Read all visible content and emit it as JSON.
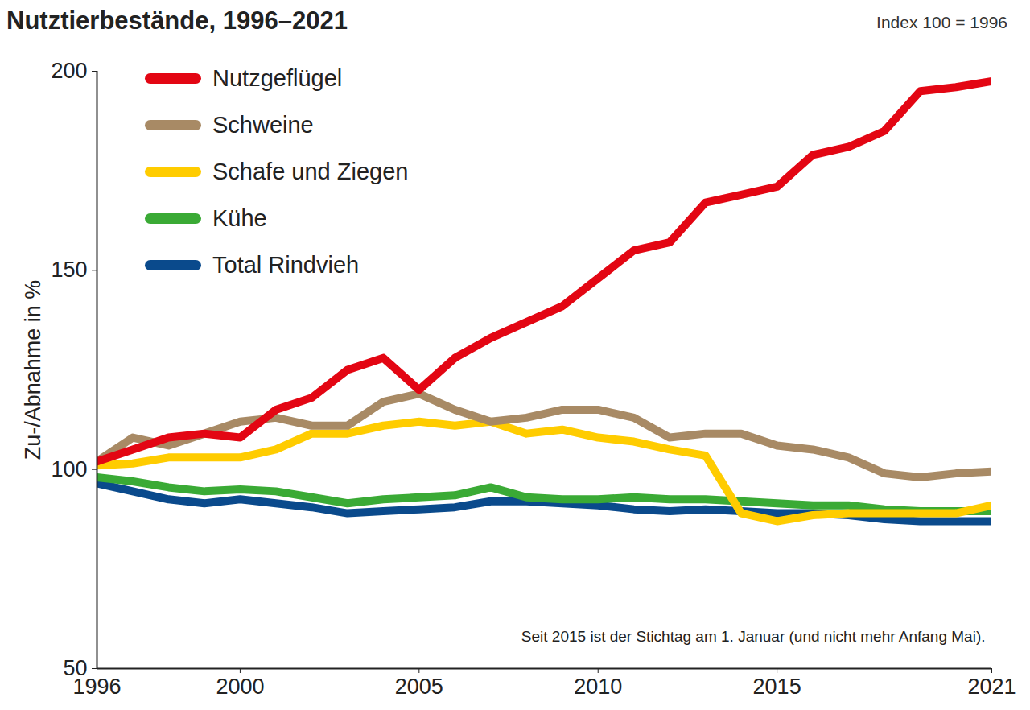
{
  "chart_data": {
    "type": "line",
    "title": "Nutztierbestände, 1996–2021",
    "subtitle": "Index 100 = 1996",
    "y_label": "Zu-/Abnahme in %",
    "note": "Seit 2015 ist der Stichtag am 1. Januar (und nicht mehr Anfang Mai).",
    "x": [
      1996,
      1997,
      1998,
      1999,
      2000,
      2001,
      2002,
      2003,
      2004,
      2005,
      2006,
      2007,
      2008,
      2009,
      2010,
      2011,
      2012,
      2013,
      2014,
      2015,
      2016,
      2017,
      2018,
      2019,
      2020,
      2021
    ],
    "xlim": [
      1996,
      2021
    ],
    "xticks": [
      1996,
      2000,
      2005,
      2010,
      2015,
      2021
    ],
    "ylim": [
      50,
      200
    ],
    "yticks": [
      50,
      100,
      150,
      200
    ],
    "grid": false,
    "legend": "top-left",
    "series": [
      {
        "name": "Nutzgeflügel",
        "color": "#e30613",
        "values": [
          102,
          105,
          108,
          109,
          108,
          115,
          118,
          125,
          128,
          120,
          128,
          133,
          137,
          141,
          148,
          155,
          157,
          167,
          169,
          171,
          179,
          181,
          185,
          195,
          196,
          197.5
        ]
      },
      {
        "name": "Schweine",
        "color": "#a88a65",
        "values": [
          102,
          108,
          106,
          109,
          112,
          113,
          111,
          111,
          117,
          119,
          115,
          112,
          113,
          115,
          115,
          113,
          108,
          109,
          109,
          106,
          105,
          103,
          99,
          98,
          99,
          99.5
        ]
      },
      {
        "name": "Schafe und Ziegen",
        "color": "#ffcc00",
        "values": [
          101,
          101.5,
          103,
          103,
          103,
          105,
          109,
          109,
          111,
          112,
          111,
          112,
          109,
          110,
          108,
          107,
          105,
          103.5,
          89,
          87,
          88.5,
          89,
          89,
          89,
          89,
          91
        ]
      },
      {
        "name": "Kühe",
        "color": "#3aaa35",
        "values": [
          98,
          97,
          95.5,
          94.5,
          95,
          94.5,
          93,
          91.5,
          92.5,
          93,
          93.5,
          95.5,
          93,
          92.5,
          92.5,
          93,
          92.5,
          92.5,
          92,
          91.5,
          91,
          91,
          90,
          89.5,
          89.5,
          89.5
        ]
      },
      {
        "name": "Total Rindvieh",
        "color": "#0a4a8c",
        "values": [
          96.5,
          94.5,
          92.5,
          91.5,
          92.5,
          91.5,
          90.5,
          89,
          89.5,
          90,
          90.5,
          92,
          92,
          91.5,
          91,
          90,
          89.5,
          90,
          89.5,
          89,
          89,
          88.5,
          87.5,
          87,
          87,
          87
        ]
      }
    ]
  }
}
